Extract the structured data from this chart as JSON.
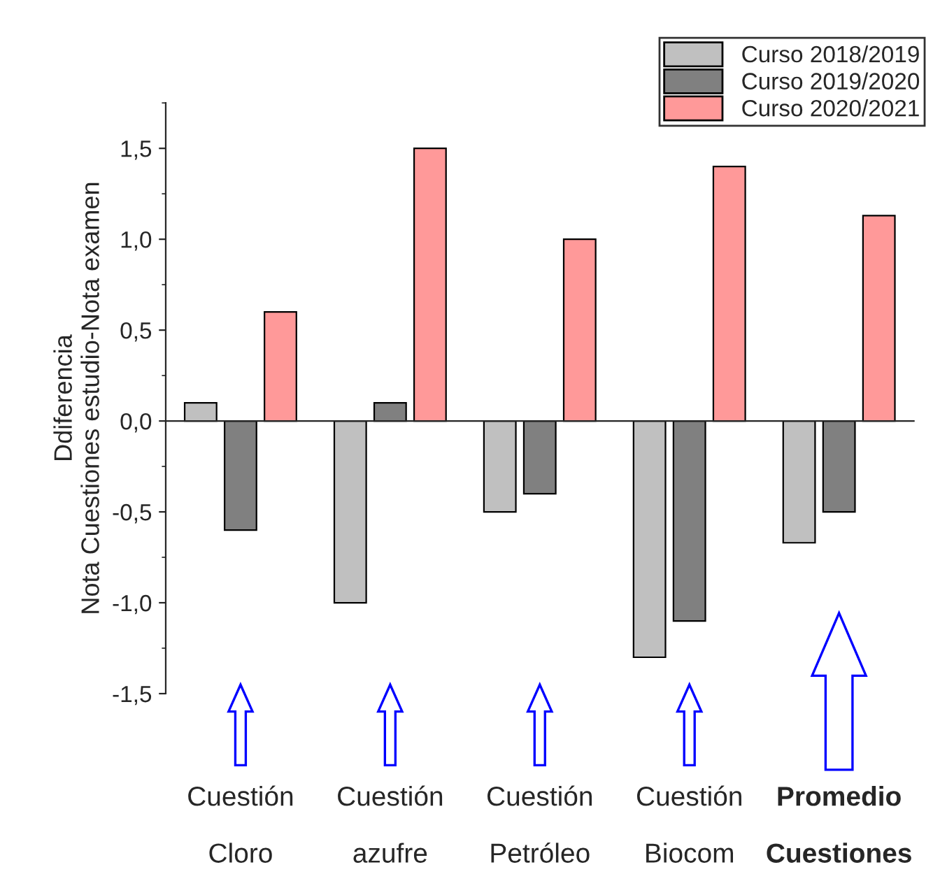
{
  "chart_data": {
    "type": "bar",
    "ylabel": "Ddiferencia\nNota Cuestiones estudio-Nota examen",
    "categories": [
      "Cuestión\nCloro",
      "Cuestión\nazufre",
      "Cuestión\nPetróleo",
      "Cuestión\nBiocom",
      "Promedio\nCuestiones"
    ],
    "series": [
      {
        "name": "Curso 2018/2019",
        "color": "#c0c0c0",
        "values": [
          0.1,
          -1.0,
          -0.5,
          -1.3,
          -0.67
        ]
      },
      {
        "name": "Curso 2019/2020",
        "color": "#808080",
        "values": [
          -0.6,
          0.1,
          -0.4,
          -1.1,
          -0.5
        ]
      },
      {
        "name": "Curso 2020/2021",
        "color": "#ff9999",
        "values": [
          0.6,
          1.5,
          1.0,
          1.4,
          1.13
        ]
      }
    ],
    "ylim": [
      -1.5,
      1.75
    ],
    "yticks": [
      {
        "value": -1.5,
        "label": "-1,5"
      },
      {
        "value": -1.0,
        "label": "-1,0"
      },
      {
        "value": -0.5,
        "label": "-0,5"
      },
      {
        "value": 0.0,
        "label": "0,0"
      },
      {
        "value": 0.5,
        "label": "0,5"
      },
      {
        "value": 1.0,
        "label": "1,0"
      },
      {
        "value": 1.5,
        "label": "1,5"
      }
    ],
    "legend": "top right"
  }
}
